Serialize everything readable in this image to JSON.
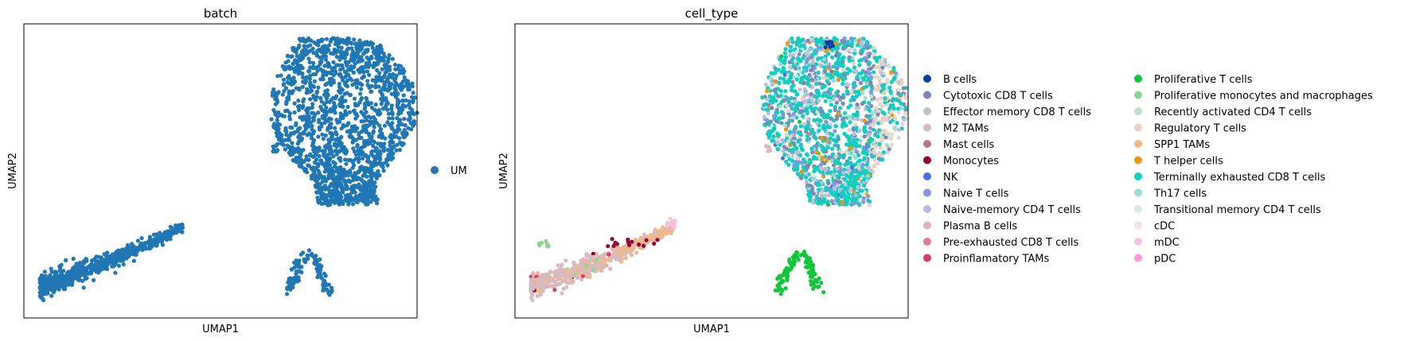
{
  "chart_data": [
    {
      "type": "scatter",
      "title": "batch",
      "xlabel": "UMAP1",
      "ylabel": "UMAP2",
      "grid": false,
      "ticks": false,
      "legend_placement": "right",
      "legend": [
        {
          "label": "UM",
          "color": "#1f77b4"
        }
      ],
      "clusters": [
        {
          "region": "large upper-right",
          "color": "#1f77b4",
          "approx_points": 1900
        },
        {
          "region": "lower-left elongated",
          "color": "#1f77b4",
          "approx_points": 700
        },
        {
          "region": "small lower-center",
          "color": "#1f77b4",
          "approx_points": 110
        },
        {
          "region": "tiny middle",
          "color": "#1f77b4",
          "approx_points": 8
        }
      ]
    },
    {
      "type": "scatter",
      "title": "cell_type",
      "xlabel": "UMAP1",
      "ylabel": "UMAP2",
      "grid": false,
      "ticks": false,
      "legend_placement": "right, two columns",
      "legend": [
        {
          "label": "B cells",
          "color": "#023fa5"
        },
        {
          "label": "Cytotoxic CD8 T cells",
          "color": "#7d87b9"
        },
        {
          "label": "Effector memory CD8 T cells",
          "color": "#bec1d4"
        },
        {
          "label": "M2 TAMs",
          "color": "#d6bcc0"
        },
        {
          "label": "Mast cells",
          "color": "#bb7784"
        },
        {
          "label": "Monocytes",
          "color": "#8e063b"
        },
        {
          "label": "NK",
          "color": "#4a6fe3"
        },
        {
          "label": "Naive T cells",
          "color": "#8595e1"
        },
        {
          "label": "Naive-memory CD4 T cells",
          "color": "#b5bbe3"
        },
        {
          "label": "Plasma B cells",
          "color": "#e6afb9"
        },
        {
          "label": "Pre-exhausted CD8 T cells",
          "color": "#e07b91"
        },
        {
          "label": "Proinflamatory TAMs",
          "color": "#d33f6a"
        },
        {
          "label": "Proliferative T cells",
          "color": "#11c638"
        },
        {
          "label": "Proliferative monocytes and macrophages",
          "color": "#8dd593"
        },
        {
          "label": "Recently activated CD4 T cells",
          "color": "#c6dec7"
        },
        {
          "label": "Regulatory T cells",
          "color": "#ead3c6"
        },
        {
          "label": "SPP1 TAMs",
          "color": "#f0b98d"
        },
        {
          "label": "T helper cells",
          "color": "#ef9708"
        },
        {
          "label": "Terminally exhausted CD8 T cells",
          "color": "#0fcfc0"
        },
        {
          "label": "Th17 cells",
          "color": "#9cded6"
        },
        {
          "label": "Transitional memory CD4 T cells",
          "color": "#d5eae7"
        },
        {
          "label": "cDC",
          "color": "#f3e1eb"
        },
        {
          "label": "mDC",
          "color": "#f6c4e1"
        },
        {
          "label": "pDC",
          "color": "#f79cd4"
        }
      ]
    }
  ]
}
